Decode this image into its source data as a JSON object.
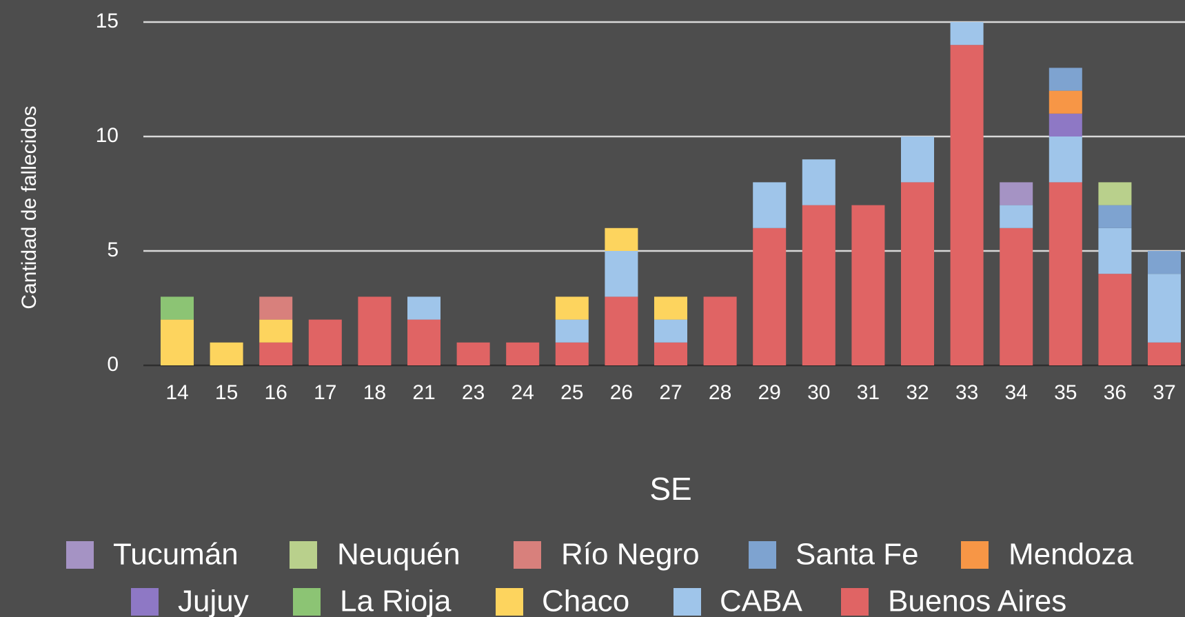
{
  "chart_data": {
    "type": "stacked_bar",
    "x_label": "SE",
    "y_label": "Cantidad de fallecidos",
    "categories": [
      "14",
      "15",
      "16",
      "17",
      "18",
      "21",
      "23",
      "24",
      "25",
      "26",
      "27",
      "28",
      "29",
      "30",
      "31",
      "32",
      "33",
      "34",
      "35",
      "36",
      "37"
    ],
    "ylim": [
      0,
      15
    ],
    "yticks": [
      0,
      5,
      10,
      15
    ],
    "grid": true,
    "series": [
      {
        "name": "Tucumán",
        "color": "#a593c4",
        "values": [
          0,
          0,
          0,
          0,
          0,
          0,
          0,
          0,
          0,
          0,
          0,
          0,
          0,
          0,
          0,
          0,
          0,
          1,
          0,
          0,
          0
        ]
      },
      {
        "name": "Neuquén",
        "color": "#b9d08c",
        "values": [
          0,
          0,
          0,
          0,
          0,
          0,
          0,
          0,
          0,
          0,
          0,
          0,
          0,
          0,
          0,
          0,
          0,
          0,
          0,
          1,
          0
        ]
      },
      {
        "name": "Río Negro",
        "color": "#d8807c",
        "values": [
          0,
          0,
          1,
          0,
          0,
          0,
          0,
          0,
          0,
          0,
          0,
          0,
          0,
          0,
          0,
          0,
          0,
          0,
          0,
          0,
          0
        ]
      },
      {
        "name": "Santa Fe",
        "color": "#7ea3d0",
        "values": [
          0,
          0,
          0,
          0,
          0,
          0,
          0,
          0,
          0,
          0,
          0,
          0,
          0,
          0,
          0,
          0,
          0,
          0,
          1,
          1,
          1
        ]
      },
      {
        "name": "Mendoza",
        "color": "#f79646",
        "values": [
          0,
          0,
          0,
          0,
          0,
          0,
          0,
          0,
          0,
          0,
          0,
          0,
          0,
          0,
          0,
          0,
          0,
          0,
          1,
          0,
          0
        ]
      },
      {
        "name": "Jujuy",
        "color": "#8e78c5",
        "values": [
          0,
          0,
          0,
          0,
          0,
          0,
          0,
          0,
          0,
          0,
          0,
          0,
          0,
          0,
          0,
          0,
          0,
          0,
          1,
          0,
          0
        ]
      },
      {
        "name": "La Rioja",
        "color": "#8cc474",
        "values": [
          1,
          0,
          0,
          0,
          0,
          0,
          0,
          0,
          0,
          0,
          0,
          0,
          0,
          0,
          0,
          0,
          0,
          0,
          0,
          0,
          0
        ]
      },
      {
        "name": "Chaco",
        "color": "#fdd45e",
        "values": [
          2,
          1,
          1,
          0,
          0,
          0,
          0,
          0,
          1,
          1,
          1,
          0,
          0,
          0,
          0,
          0,
          0,
          0,
          0,
          0,
          0
        ]
      },
      {
        "name": "CABA",
        "color": "#9fc5ea",
        "values": [
          0,
          0,
          0,
          0,
          0,
          1,
          0,
          0,
          1,
          2,
          1,
          0,
          2,
          2,
          0,
          2,
          1,
          1,
          2,
          2,
          3
        ]
      },
      {
        "name": "Buenos Aires",
        "color": "#e06464",
        "values": [
          0,
          0,
          1,
          2,
          3,
          2,
          1,
          1,
          1,
          3,
          1,
          3,
          6,
          7,
          7,
          8,
          14,
          6,
          8,
          4,
          1
        ]
      }
    ]
  }
}
